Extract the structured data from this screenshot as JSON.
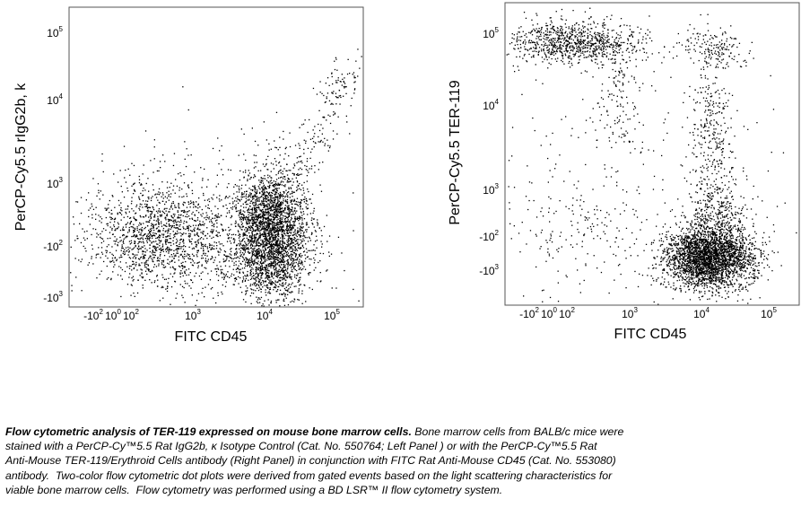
{
  "panels": [
    {
      "y_label": "PerCP-Cy5.5 rIgG2b, k",
      "x_label": "FITC CD45",
      "yticks": [
        {
          "base": "10",
          "exp": "5"
        },
        {
          "base": "10",
          "exp": "4"
        },
        {
          "base": "10",
          "exp": "3"
        },
        {
          "base": "-10",
          "exp": "2"
        },
        {
          "base": "-10",
          "exp": "3"
        }
      ],
      "xticks": [
        {
          "base": "-10",
          "exp": "2"
        },
        {
          "base": "10",
          "exp": "0"
        },
        {
          "base": "10",
          "exp": "2"
        },
        {
          "base": "10",
          "exp": "3"
        },
        {
          "base": "10",
          "exp": "4"
        },
        {
          "base": "10",
          "exp": "5"
        }
      ]
    },
    {
      "y_label": "PerCP-Cy5.5 TER-119",
      "x_label": "FITC CD45",
      "yticks": [
        {
          "base": "10",
          "exp": "5"
        },
        {
          "base": "10",
          "exp": "4"
        },
        {
          "base": "10",
          "exp": "3"
        },
        {
          "base": "-10",
          "exp": "2"
        },
        {
          "base": "-10",
          "exp": "3"
        }
      ],
      "xticks": [
        {
          "base": "-10",
          "exp": "2"
        },
        {
          "base": "10",
          "exp": "0"
        },
        {
          "base": "10",
          "exp": "2"
        },
        {
          "base": "10",
          "exp": "3"
        },
        {
          "base": "10",
          "exp": "4"
        },
        {
          "base": "10",
          "exp": "5"
        }
      ]
    }
  ],
  "caption": {
    "lead": "Flow cytometric analysis of TER-119 expressed on mouse bone marrow cells.",
    "lines": [
      " Bone marrow cells from BALB/c mice were",
      "stained with a PerCP-Cy™5.5 Rat IgG2b, κ Isotype Control (Cat. No. 550764; Left Panel ) or with the PerCP-Cy™5.5 Rat",
      "Anti-Mouse TER-119/Erythroid Cells antibody (Right Panel) in conjunction with FITC Rat Anti-Mouse CD45 (Cat. No. 553080)",
      "antibody.  Two-color flow cytometric dot plots were derived from gated events based on the light scattering characteristics for",
      "viable bone marrow cells.  Flow cytometry was performed using a BD LSR™ II flow cytometry system."
    ]
  }
}
